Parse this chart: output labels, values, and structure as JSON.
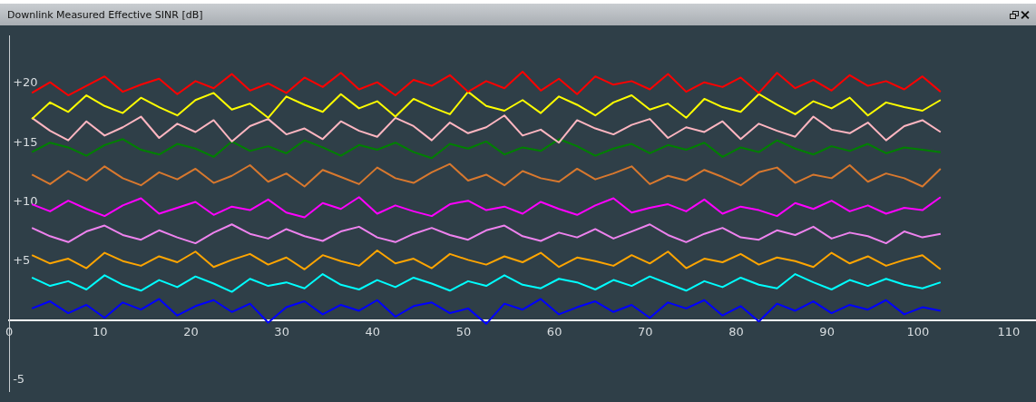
{
  "chart_data": {
    "type": "line",
    "title": "Downlink Measured Effective SINR [dB]",
    "x": [
      2.5,
      4.5,
      6.5,
      8.5,
      10.5,
      12.5,
      14.5,
      16.5,
      18.5,
      20.5,
      22.5,
      24.5,
      26.5,
      28.5,
      30.5,
      32.5,
      34.5,
      36.5,
      38.5,
      40.5,
      42.5,
      44.5,
      46.5,
      48.5,
      50.5,
      52.5,
      54.5,
      56.5,
      58.5,
      60.5,
      62.5,
      64.5,
      66.5,
      68.5,
      70.5,
      72.5,
      74.5,
      76.5,
      78.5,
      80.5,
      82.5,
      84.5,
      86.5,
      88.5,
      90.5,
      92.5,
      94.5,
      96.5,
      98.5,
      100.5,
      102.5
    ],
    "series": [
      {
        "color": "#ff0000",
        "values": [
          19.2,
          20.1,
          19.0,
          19.8,
          20.6,
          19.3,
          19.9,
          20.4,
          19.1,
          20.2,
          19.6,
          20.8,
          19.4,
          20.0,
          19.2,
          20.5,
          19.7,
          20.9,
          19.5,
          20.1,
          19.0,
          20.3,
          19.8,
          20.7,
          19.3,
          20.2,
          19.6,
          21.0,
          19.4,
          20.4,
          19.1,
          20.6,
          19.9,
          20.2,
          19.5,
          20.8,
          19.3,
          20.1,
          19.7,
          20.5,
          19.2,
          20.9,
          19.6,
          20.3,
          19.4,
          20.7,
          19.8,
          20.2,
          19.5,
          20.6,
          19.3
        ]
      },
      {
        "color": "#ffff00",
        "values": [
          17.0,
          18.4,
          17.6,
          19.0,
          18.1,
          17.5,
          18.8,
          18.0,
          17.3,
          18.6,
          19.2,
          17.8,
          18.3,
          17.1,
          18.9,
          18.2,
          17.6,
          19.1,
          17.9,
          18.5,
          17.2,
          18.7,
          18.0,
          17.4,
          19.3,
          18.1,
          17.7,
          18.6,
          17.5,
          18.9,
          18.2,
          17.3,
          18.4,
          19.0,
          17.8,
          18.3,
          17.1,
          18.7,
          18.0,
          17.6,
          19.1,
          18.2,
          17.4,
          18.5,
          17.9,
          18.8,
          17.3,
          18.4,
          18.0,
          17.7,
          18.6
        ]
      },
      {
        "color": "#ffb6c1",
        "values": [
          17.1,
          16.0,
          15.2,
          16.8,
          15.6,
          16.3,
          17.2,
          15.4,
          16.6,
          15.9,
          16.9,
          15.1,
          16.4,
          17.0,
          15.7,
          16.2,
          15.3,
          16.8,
          16.0,
          15.5,
          17.1,
          16.4,
          15.2,
          16.7,
          15.8,
          16.3,
          17.3,
          15.6,
          16.1,
          15.0,
          16.9,
          16.2,
          15.7,
          16.5,
          17.0,
          15.4,
          16.3,
          15.9,
          16.8,
          15.3,
          16.6,
          16.0,
          15.5,
          17.2,
          16.1,
          15.8,
          16.7,
          15.2,
          16.4,
          16.9,
          15.9
        ]
      },
      {
        "color": "#008000",
        "values": [
          14.2,
          15.0,
          14.6,
          13.9,
          14.8,
          15.3,
          14.4,
          14.0,
          14.9,
          14.5,
          13.8,
          15.1,
          14.3,
          14.7,
          14.1,
          15.2,
          14.6,
          13.9,
          14.8,
          14.4,
          15.0,
          14.2,
          13.7,
          14.9,
          14.5,
          15.1,
          14.0,
          14.6,
          14.3,
          15.3,
          14.7,
          13.9,
          14.5,
          14.9,
          14.1,
          14.8,
          14.4,
          15.0,
          13.8,
          14.6,
          14.2,
          15.2,
          14.5,
          14.0,
          14.7,
          14.3,
          14.9,
          14.1,
          14.6,
          14.4,
          14.2
        ]
      },
      {
        "color": "#d8782e",
        "values": [
          12.3,
          11.5,
          12.6,
          11.8,
          13.0,
          12.0,
          11.4,
          12.5,
          11.9,
          12.8,
          11.6,
          12.2,
          13.1,
          11.7,
          12.4,
          11.3,
          12.7,
          12.1,
          11.5,
          12.9,
          12.0,
          11.6,
          12.5,
          13.2,
          11.8,
          12.3,
          11.4,
          12.6,
          12.0,
          11.7,
          12.8,
          11.9,
          12.4,
          13.0,
          11.5,
          12.2,
          11.8,
          12.7,
          12.1,
          11.4,
          12.5,
          12.9,
          11.6,
          12.3,
          12.0,
          13.1,
          11.7,
          12.4,
          12.0,
          11.3,
          12.8
        ]
      },
      {
        "color": "#ff00ff",
        "values": [
          9.8,
          9.2,
          10.1,
          9.4,
          8.8,
          9.7,
          10.3,
          9.0,
          9.5,
          10.0,
          8.9,
          9.6,
          9.3,
          10.2,
          9.1,
          8.7,
          9.9,
          9.4,
          10.4,
          9.0,
          9.7,
          9.2,
          8.8,
          9.8,
          10.1,
          9.3,
          9.6,
          9.0,
          10.0,
          9.4,
          8.9,
          9.7,
          10.3,
          9.1,
          9.5,
          9.8,
          9.2,
          10.2,
          9.0,
          9.6,
          9.3,
          8.8,
          9.9,
          9.4,
          10.1,
          9.2,
          9.7,
          9.0,
          9.5,
          9.3,
          10.4
        ]
      },
      {
        "color": "#ee82ee",
        "values": [
          7.8,
          7.1,
          6.6,
          7.5,
          8.0,
          7.2,
          6.8,
          7.6,
          7.0,
          6.5,
          7.4,
          8.1,
          7.3,
          6.9,
          7.7,
          7.1,
          6.7,
          7.5,
          7.9,
          7.0,
          6.6,
          7.3,
          7.8,
          7.2,
          6.8,
          7.6,
          8.0,
          7.1,
          6.7,
          7.4,
          7.0,
          7.7,
          6.9,
          7.5,
          8.1,
          7.2,
          6.6,
          7.3,
          7.8,
          7.0,
          6.8,
          7.6,
          7.2,
          7.9,
          6.9,
          7.4,
          7.1,
          6.5,
          7.5,
          7.0,
          7.3
        ]
      },
      {
        "color": "#ffa500",
        "values": [
          5.5,
          4.8,
          5.2,
          4.4,
          5.7,
          5.0,
          4.6,
          5.4,
          4.9,
          5.8,
          4.5,
          5.1,
          5.6,
          4.7,
          5.3,
          4.3,
          5.5,
          5.0,
          4.6,
          5.9,
          4.8,
          5.2,
          4.4,
          5.6,
          5.1,
          4.7,
          5.4,
          4.9,
          5.7,
          4.5,
          5.3,
          5.0,
          4.6,
          5.5,
          4.8,
          5.8,
          4.4,
          5.2,
          4.9,
          5.6,
          4.7,
          5.3,
          5.0,
          4.5,
          5.7,
          4.8,
          5.4,
          4.6,
          5.1,
          5.5,
          4.3
        ]
      },
      {
        "color": "#00ffff",
        "values": [
          3.6,
          2.9,
          3.3,
          2.6,
          3.8,
          3.0,
          2.5,
          3.4,
          2.8,
          3.7,
          3.1,
          2.4,
          3.5,
          2.9,
          3.2,
          2.7,
          3.9,
          3.0,
          2.6,
          3.4,
          2.8,
          3.6,
          3.1,
          2.5,
          3.3,
          2.9,
          3.8,
          3.0,
          2.7,
          3.5,
          3.2,
          2.6,
          3.4,
          2.9,
          3.7,
          3.1,
          2.5,
          3.3,
          2.8,
          3.6,
          3.0,
          2.7,
          3.9,
          3.2,
          2.6,
          3.4,
          2.9,
          3.5,
          3.0,
          2.7,
          3.2
        ]
      },
      {
        "color": "#0000ff",
        "values": [
          1.0,
          1.6,
          0.6,
          1.3,
          0.2,
          1.5,
          0.9,
          1.8,
          0.4,
          1.2,
          1.7,
          0.7,
          1.4,
          -0.2,
          1.1,
          1.6,
          0.5,
          1.3,
          0.8,
          1.7,
          0.3,
          1.2,
          1.5,
          0.6,
          1.0,
          -0.3,
          1.4,
          0.9,
          1.8,
          0.5,
          1.1,
          1.6,
          0.7,
          1.3,
          0.2,
          1.5,
          1.0,
          1.7,
          0.4,
          1.2,
          -0.1,
          1.4,
          0.8,
          1.6,
          0.6,
          1.3,
          0.9,
          1.7,
          0.5,
          1.1,
          0.8
        ]
      }
    ],
    "xlim": [
      0,
      113
    ],
    "xticks": [
      0,
      10,
      20,
      30,
      40,
      50,
      60,
      70,
      80,
      90,
      100,
      110
    ],
    "ylim": [
      -6,
      24
    ],
    "yticks": [
      {
        "value": -5,
        "label": "-5"
      },
      {
        "value": 0,
        "label": null
      },
      {
        "value": 5,
        "label": "+5"
      },
      {
        "value": 10,
        "label": "+10"
      },
      {
        "value": 15,
        "label": "+15"
      },
      {
        "value": 20,
        "label": "+20"
      }
    ],
    "grid": false,
    "legend": false,
    "marker": "none",
    "line_style": "solid"
  }
}
